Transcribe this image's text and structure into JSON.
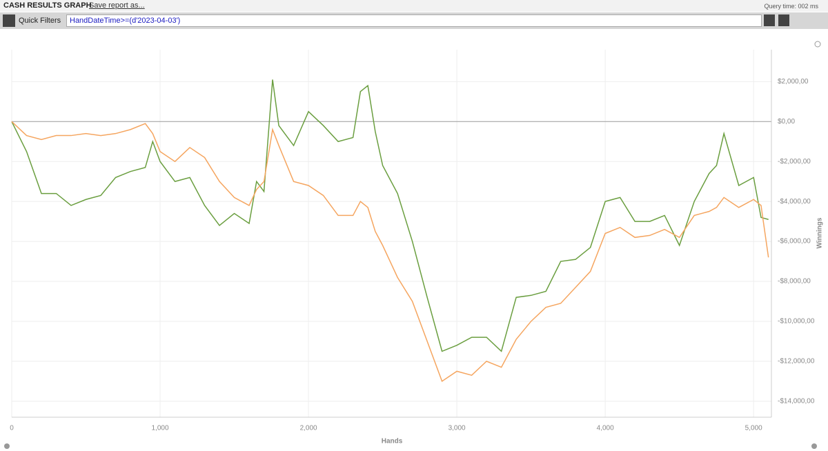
{
  "header": {
    "title": "CASH RESULTS GRAPH",
    "save_link": "Save report as...",
    "query_time": "Query time: 002 ms"
  },
  "filter_bar": {
    "label": "Quick Filters",
    "expression": "HandDateTime>=(d'2023-04-03')"
  },
  "chart_data": {
    "type": "line",
    "xlabel": "Hands",
    "ylabel": "Winnings",
    "x": [
      0,
      100,
      200,
      300,
      400,
      500,
      600,
      700,
      800,
      900,
      950,
      1000,
      1100,
      1200,
      1300,
      1400,
      1500,
      1600,
      1650,
      1700,
      1758,
      1800,
      1900,
      2000,
      2100,
      2200,
      2300,
      2350,
      2400,
      2450,
      2500,
      2600,
      2700,
      2800,
      2900,
      3000,
      3100,
      3200,
      3300,
      3400,
      3500,
      3600,
      3700,
      3800,
      3900,
      4000,
      4100,
      4200,
      4300,
      4400,
      4500,
      4600,
      4700,
      4750,
      4800,
      4900,
      5000,
      5050,
      5100
    ],
    "series": [
      {
        "color": "#6a9e3f",
        "values": [
          0,
          -1500,
          -3600,
          -3600,
          -4200,
          -3900,
          -3700,
          -2800,
          -2500,
          -2300,
          -1000,
          -2000,
          -3000,
          -2800,
          -4200,
          -5200,
          -4600,
          -5100,
          -3000,
          -3500,
          2100,
          -200,
          -1200,
          500,
          -200,
          -1000,
          -800,
          1500,
          1800,
          -500,
          -2200,
          -3600,
          -6000,
          -8800,
          -11500,
          -11200,
          -10800,
          -10800,
          -11500,
          -8800,
          -8700,
          -8500,
          -7000,
          -6900,
          -6300,
          -4000,
          -3800,
          -5000,
          -5000,
          -4700,
          -6200,
          -4000,
          -2600,
          -2200,
          -600,
          -3200,
          -2800,
          -4800,
          -4900
        ]
      },
      {
        "color": "#f5a55f",
        "values": [
          0,
          -700,
          -900,
          -700,
          -700,
          -600,
          -700,
          -600,
          -400,
          -100,
          -600,
          -1500,
          -2000,
          -1300,
          -1800,
          -3000,
          -3800,
          -4200,
          -3400,
          -3000,
          -400,
          -1200,
          -3000,
          -3200,
          -3700,
          -4700,
          -4700,
          -4000,
          -4300,
          -5500,
          -6200,
          -7800,
          -9000,
          -11000,
          -13000,
          -12500,
          -12700,
          -12000,
          -12300,
          -10900,
          -10000,
          -9300,
          -9100,
          -8300,
          -7500,
          -5600,
          -5300,
          -5800,
          -5700,
          -5400,
          -5800,
          -4700,
          -4500,
          -4300,
          -3800,
          -4300,
          -3900,
          -4200,
          -6800
        ]
      }
    ],
    "xlim": [
      0,
      5120
    ],
    "xticks": [
      0,
      {
        "value": 1000,
        "label": "1,000"
      },
      {
        "value": 2000,
        "label": "2,000"
      },
      {
        "value": 3000,
        "label": "3,000"
      },
      {
        "value": 4000,
        "label": "4,000"
      },
      {
        "value": 5000,
        "label": "5,000"
      }
    ],
    "ylim": [
      -14800,
      3600
    ],
    "yticks": [
      {
        "value": 2000,
        "label": "$2,000,00"
      },
      {
        "value": 0,
        "label": "$0,00"
      },
      {
        "value": -2000,
        "label": "-$2,000,00"
      },
      {
        "value": -4000,
        "label": "-$4,000,00"
      },
      {
        "value": -6000,
        "label": "-$6,000,00"
      },
      {
        "value": -8000,
        "label": "-$8,000,00"
      },
      {
        "value": -10000,
        "label": "-$10,000,00"
      },
      {
        "value": -12000,
        "label": "-$12,000,00"
      },
      {
        "value": -14000,
        "label": "-$14,000,00"
      }
    ],
    "grid": true
  }
}
